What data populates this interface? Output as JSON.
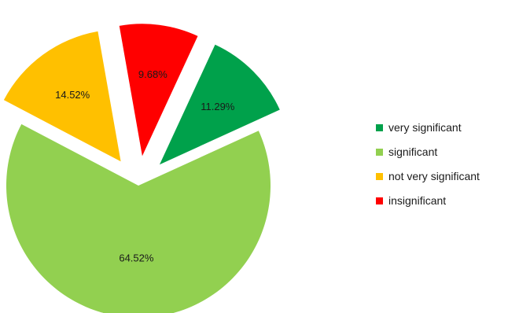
{
  "chart_data": {
    "type": "pie",
    "exploded": true,
    "legend_position": "right",
    "slices": [
      {
        "label": "very significant",
        "value": 11.29,
        "value_label": "11.29%",
        "color": "#00a14b"
      },
      {
        "label": "significant",
        "value": 64.52,
        "value_label": "64.52%",
        "color": "#92d050"
      },
      {
        "label": "not very significant",
        "value": 14.52,
        "value_label": "14.52%",
        "color": "#ffc000"
      },
      {
        "label": "insignificant",
        "value": 9.68,
        "value_label": "9.68%",
        "color": "#ff0000"
      }
    ],
    "draw_order": [
      3,
      0,
      1,
      2
    ]
  }
}
